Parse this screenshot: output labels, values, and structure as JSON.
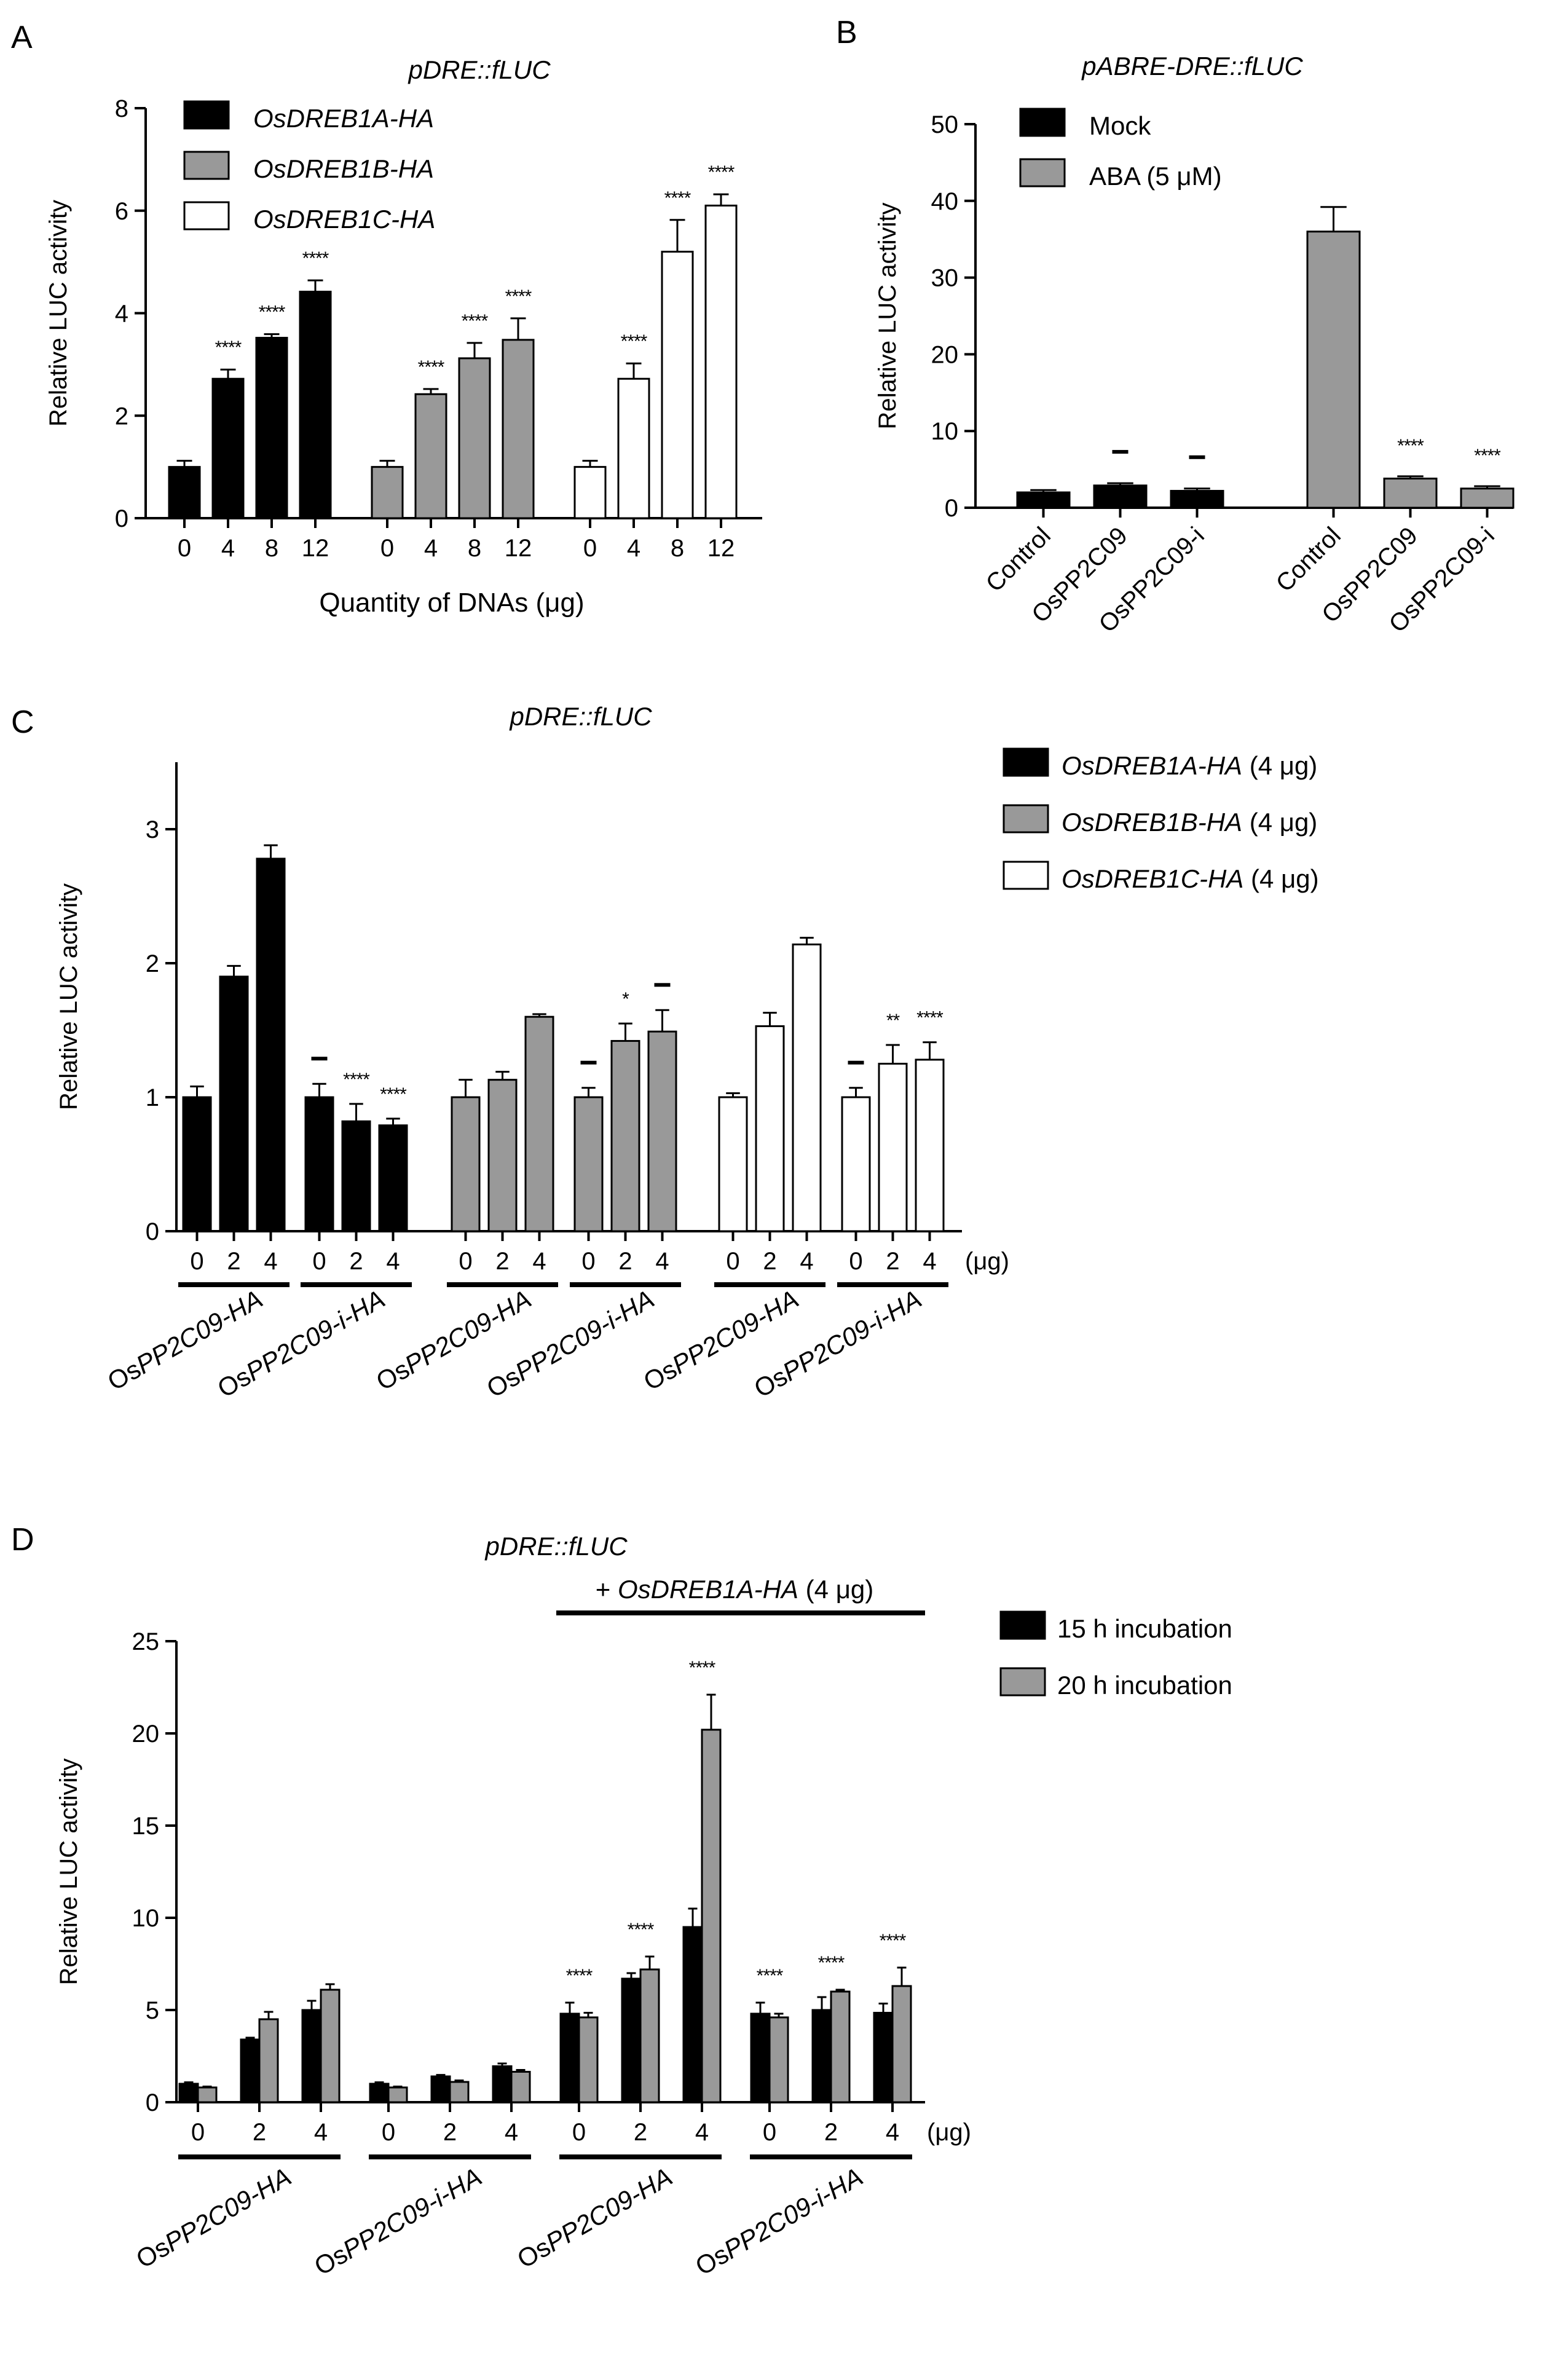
{
  "chart_data": [
    {
      "panel_label": "A",
      "type": "bar",
      "title": "pDRE::fLUC",
      "ylabel": "Relative LUC activity",
      "xlabel": "Quantity of DNAs (μg)",
      "ylim": [
        0,
        8
      ],
      "yticks": [
        "0",
        "2",
        "4",
        "6",
        "8"
      ],
      "colors": {
        "OsDREB1A-HA": "#000000",
        "OsDREB1B-HA": "#999999",
        "OsDREB1C-HA": "#ffffff"
      },
      "groups": [
        {
          "name": "OsDREB1A-HA",
          "categories": [
            "0",
            "4",
            "8",
            "12"
          ],
          "values": [
            1.0,
            2.72,
            3.52,
            4.42
          ],
          "errors": [
            0.12,
            0.18,
            0.07,
            0.22
          ],
          "sig": [
            "",
            "****",
            "****",
            "****"
          ]
        },
        {
          "name": "OsDREB1B-HA",
          "categories": [
            "0",
            "4",
            "8",
            "12"
          ],
          "values": [
            1.0,
            2.42,
            3.12,
            3.48
          ],
          "errors": [
            0.12,
            0.1,
            0.3,
            0.42
          ],
          "sig": [
            "",
            "****",
            "****",
            "****"
          ]
        },
        {
          "name": "OsDREB1C-HA",
          "categories": [
            "0",
            "4",
            "8",
            "12"
          ],
          "values": [
            1.0,
            2.72,
            5.2,
            6.1
          ],
          "errors": [
            0.12,
            0.3,
            0.62,
            0.22
          ],
          "sig": [
            "",
            "****",
            "****",
            "****"
          ]
        }
      ],
      "legend": [
        "OsDREB1A-HA",
        "OsDREB1B-HA",
        "OsDREB1C-HA"
      ]
    },
    {
      "panel_label": "B",
      "type": "bar",
      "title": "pABRE-DRE::fLUC",
      "ylabel": "Relative LUC activity",
      "ylim": [
        0,
        50
      ],
      "yticks": [
        "0",
        "10",
        "20",
        "30",
        "40",
        "50"
      ],
      "colors": {
        "Mock": "#000000",
        "ABA (5 μM)": "#999999"
      },
      "groups": [
        {
          "name": "Mock",
          "categories": [
            "Control",
            "OsPP2C09",
            "OsPP2C09-i"
          ],
          "values": [
            2.0,
            2.9,
            2.2
          ],
          "errors": [
            0.3,
            0.3,
            0.3
          ],
          "sig": [
            "",
            "–",
            "–"
          ]
        },
        {
          "name": "ABA (5 μM)",
          "categories": [
            "Control",
            "OsPP2C09",
            "OsPP2C09-i"
          ],
          "values": [
            36.0,
            3.8,
            2.5
          ],
          "errors": [
            3.2,
            0.3,
            0.3
          ],
          "sig": [
            "",
            "****",
            "****"
          ]
        }
      ],
      "legend": [
        "Mock",
        "ABA (5 μM)"
      ]
    },
    {
      "panel_label": "C",
      "type": "bar",
      "title": "pDRE::fLUC",
      "ylabel": "Relative LUC activity",
      "ylim": [
        0,
        3.5
      ],
      "yticks": [
        "0",
        "1",
        "2",
        "3"
      ],
      "unit_label": "(μg)",
      "colors": {
        "OsDREB1A-HA (4 μg)": "#000000",
        "OsDREB1B-HA (4 μg)": "#999999",
        "OsDREB1C-HA (4 μg)": "#ffffff"
      },
      "groups": [
        {
          "name": "OsDREB1A-HA (4 μg)",
          "subgroup": "OsPP2C09-HA",
          "categories": [
            "0",
            "2",
            "4"
          ],
          "values": [
            1.0,
            1.9,
            2.78
          ],
          "errors": [
            0.08,
            0.08,
            0.1
          ],
          "sig": [
            "",
            "",
            ""
          ]
        },
        {
          "name": "OsDREB1A-HA (4 μg)",
          "subgroup": "OsPP2C09-i-HA",
          "categories": [
            "0",
            "2",
            "4"
          ],
          "values": [
            1.0,
            0.82,
            0.79
          ],
          "errors": [
            0.1,
            0.13,
            0.05
          ],
          "sig": [
            "–",
            "****",
            "****"
          ]
        },
        {
          "name": "OsDREB1B-HA (4 μg)",
          "subgroup": "OsPP2C09-HA",
          "categories": [
            "0",
            "2",
            "4"
          ],
          "values": [
            1.0,
            1.13,
            1.6
          ],
          "errors": [
            0.13,
            0.06,
            0.02
          ],
          "sig": [
            "",
            "",
            ""
          ]
        },
        {
          "name": "OsDREB1B-HA (4 μg)",
          "subgroup": "OsPP2C09-i-HA",
          "categories": [
            "0",
            "2",
            "4"
          ],
          "values": [
            1.0,
            1.42,
            1.49
          ],
          "errors": [
            0.07,
            0.13,
            0.16
          ],
          "sig": [
            "–",
            "*",
            "–"
          ]
        },
        {
          "name": "OsDREB1C-HA (4 μg)",
          "subgroup": "OsPP2C09-HA",
          "categories": [
            "0",
            "2",
            "4"
          ],
          "values": [
            1.0,
            1.53,
            2.14
          ],
          "errors": [
            0.03,
            0.1,
            0.05
          ],
          "sig": [
            "",
            "",
            ""
          ]
        },
        {
          "name": "OsDREB1C-HA (4 μg)",
          "subgroup": "OsPP2C09-i-HA",
          "categories": [
            "0",
            "2",
            "4"
          ],
          "values": [
            1.0,
            1.25,
            1.28
          ],
          "errors": [
            0.07,
            0.14,
            0.13
          ],
          "sig": [
            "–",
            "**",
            "****"
          ]
        }
      ],
      "group_labels": [
        {
          "prefix": "Os",
          "italic": "PP2C09-HA"
        },
        {
          "prefix": "Os",
          "italic": "PP2C09-i-HA"
        },
        {
          "prefix": "Os",
          "italic": "PP2C09-HA"
        },
        {
          "prefix": "Os",
          "italic": "PP2C09-i-HA"
        },
        {
          "prefix": "Os",
          "italic": "PP2C09-HA"
        },
        {
          "prefix": "Os",
          "italic": "PP2C09-i-HA"
        }
      ],
      "legend": [
        {
          "italic": "OsDREB1A-HA",
          "suffix": " (4 μg)"
        },
        {
          "italic": "OsDREB1B-HA",
          "suffix": " (4 μg)"
        },
        {
          "italic": "OsDREB1C-HA",
          "suffix": " (4 μg)"
        }
      ]
    },
    {
      "panel_label": "D",
      "type": "bar",
      "title": "pDRE::fLUC",
      "ylabel": "Relative LUC activity",
      "ylim": [
        0,
        25
      ],
      "yticks": [
        "0",
        "5",
        "10",
        "15",
        "20",
        "25"
      ],
      "unit_label": "(μg)",
      "bracket": {
        "prefix": "+ ",
        "italic": "OsDREB1A-HA",
        "suffix": " (4 μg)"
      },
      "colors": {
        "15 h incubation": "#000000",
        "20 h incubation": "#999999"
      },
      "categories": [
        "0",
        "2",
        "4",
        "0",
        "2",
        "4",
        "0",
        "2",
        "4",
        "0",
        "2",
        "4"
      ],
      "series": [
        {
          "name": "15 h incubation",
          "values": [
            1.0,
            3.4,
            5.0,
            1.0,
            1.4,
            1.95,
            4.8,
            6.7,
            9.5,
            4.8,
            5.0,
            4.85
          ],
          "errors": [
            0.08,
            0.1,
            0.5,
            0.08,
            0.08,
            0.15,
            0.6,
            0.3,
            1.0,
            0.6,
            0.7,
            0.5
          ]
        },
        {
          "name": "20 h incubation",
          "values": [
            0.8,
            4.5,
            6.1,
            0.8,
            1.1,
            1.65,
            4.6,
            7.2,
            20.2,
            4.6,
            6.0,
            6.3
          ],
          "errors": [
            0.05,
            0.4,
            0.3,
            0.05,
            0.08,
            0.1,
            0.25,
            0.7,
            1.9,
            0.2,
            0.1,
            1.0
          ]
        }
      ],
      "sig": [
        "",
        "",
        "",
        "",
        "",
        "",
        "****",
        "****",
        "****",
        "****",
        "****",
        "****"
      ],
      "group_labels": [
        {
          "prefix": "Os",
          "italic": "PP2C09-HA"
        },
        {
          "prefix": "Os",
          "italic": "PP2C09-i-HA"
        },
        {
          "prefix": "Os",
          "italic": "PP2C09-HA"
        },
        {
          "prefix": "Os",
          "italic": "PP2C09-i-HA"
        }
      ],
      "legend": [
        "15 h incubation",
        "20 h incubation"
      ]
    }
  ]
}
